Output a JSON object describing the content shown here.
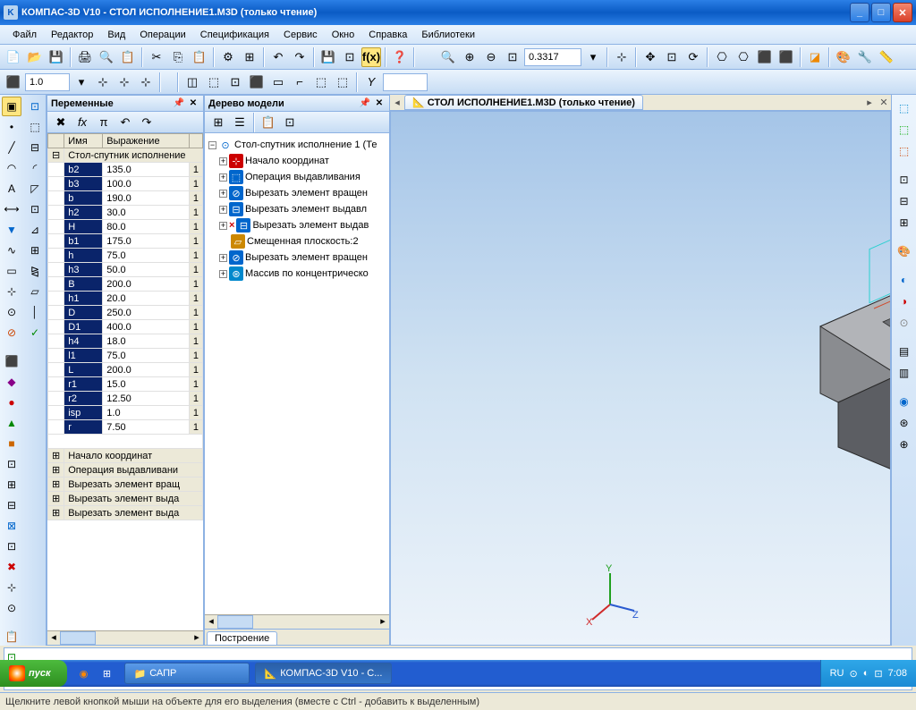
{
  "titlebar": {
    "title": "КОМПАС-3D V10 - СТОЛ ИСПОЛНЕНИЕ1.M3D (только чтение)",
    "app_icon": "K"
  },
  "menu": [
    "Файл",
    "Редактор",
    "Вид",
    "Операции",
    "Спецификация",
    "Сервис",
    "Окно",
    "Справка",
    "Библиотеки"
  ],
  "toolbar2": {
    "combo1": "1.0",
    "fx": "f(x)"
  },
  "zoom_value": "0.3317",
  "variables": {
    "title": "Переменные",
    "cols": [
      "Имя",
      "Выражение"
    ],
    "root": "Стол-спутник исполнение",
    "rows": [
      {
        "n": "b2",
        "v": "135.0"
      },
      {
        "n": "b3",
        "v": "100.0"
      },
      {
        "n": "b",
        "v": "190.0"
      },
      {
        "n": "h2",
        "v": "30.0"
      },
      {
        "n": "H",
        "v": "80.0"
      },
      {
        "n": "b1",
        "v": "175.0"
      },
      {
        "n": "h",
        "v": "75.0"
      },
      {
        "n": "h3",
        "v": "50.0"
      },
      {
        "n": "B",
        "v": "200.0"
      },
      {
        "n": "h1",
        "v": "20.0"
      },
      {
        "n": "D",
        "v": "250.0"
      },
      {
        "n": "D1",
        "v": "400.0"
      },
      {
        "n": "h4",
        "v": "18.0"
      },
      {
        "n": "l1",
        "v": "75.0"
      },
      {
        "n": "L",
        "v": "200.0"
      },
      {
        "n": "r1",
        "v": "15.0"
      },
      {
        "n": "r2",
        "v": "12.50"
      },
      {
        "n": "isp",
        "v": "1.0"
      },
      {
        "n": "r",
        "v": "7.50"
      }
    ],
    "ops": [
      "Начало координат",
      "Операция выдавливани",
      "Вырезать элемент вращ",
      "Вырезать элемент выда",
      "Вырезать элемент выда"
    ]
  },
  "tree": {
    "title": "Дерево модели",
    "root": "Стол-спутник исполнение 1 (Те",
    "items": [
      {
        "icon": "axis",
        "label": "Начало координат",
        "exp": "+"
      },
      {
        "icon": "extr",
        "label": "Операция выдавливания",
        "exp": "+"
      },
      {
        "icon": "cutr",
        "label": "Вырезать элемент вращен",
        "exp": "+"
      },
      {
        "icon": "cute",
        "label": "Вырезать элемент выдавл",
        "exp": "+"
      },
      {
        "icon": "cute",
        "label": "Вырезать элемент выдав",
        "exp": "+",
        "marked": true
      },
      {
        "icon": "plane",
        "label": "Смещенная плоскость:2",
        "exp": ""
      },
      {
        "icon": "cutr",
        "label": "Вырезать элемент вращен",
        "exp": "+"
      },
      {
        "icon": "array",
        "label": "Массив по концентрическо",
        "exp": "+"
      }
    ],
    "tab": "Построение"
  },
  "doctab": {
    "name": "СТОЛ ИСПОЛНЕНИЕ1.M3D (только чтение)"
  },
  "status": "Щелкните левой кнопкой мыши на объекте для его выделения (вместе с Ctrl - добавить к выделенным)",
  "taskbar": {
    "start": "пуск",
    "items": [
      {
        "label": "САПР",
        "active": false
      },
      {
        "label": "КОМПАС-3D V10 - С...",
        "active": true
      }
    ],
    "lang": "RU",
    "time": "7:08"
  },
  "colors": {
    "part": "#8a8c90",
    "part_dark": "#5c5e63",
    "part_light": "#b2b4b8"
  },
  "axis": {
    "x": "X",
    "y": "Y",
    "z": "Z"
  }
}
